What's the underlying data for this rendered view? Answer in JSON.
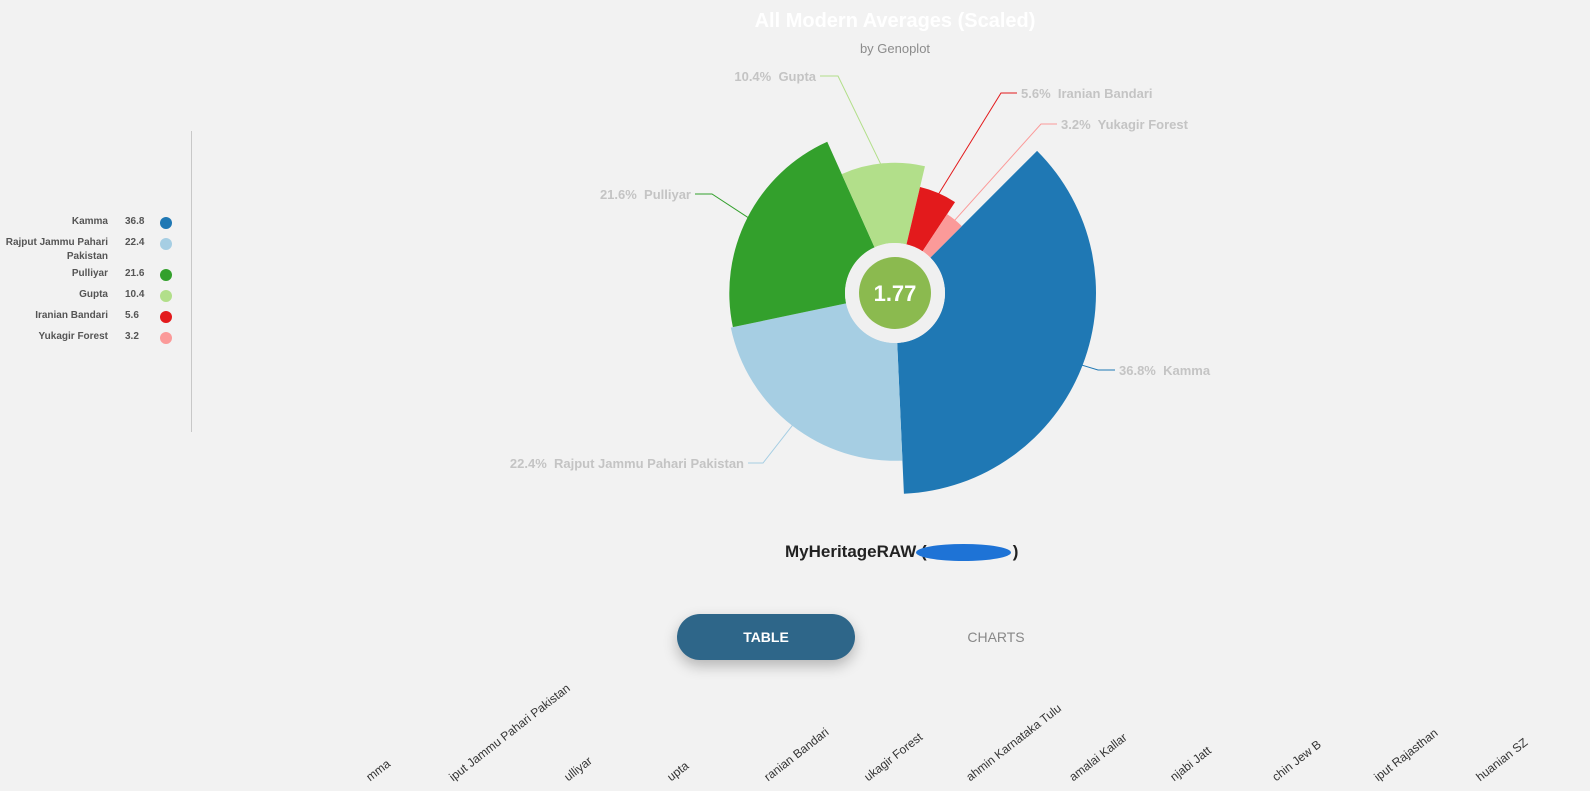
{
  "chart_data": {
    "type": "pie",
    "title": "All Modern Averages (Scaled)",
    "subtitle": "by Genoplot",
    "center_value": "1.77",
    "series": [
      {
        "name": "Kamma",
        "value": 36.8,
        "color": "#1f78b4"
      },
      {
        "name": "Rajput Jammu Pahari Pakistan",
        "value": 22.4,
        "color": "#a6cee3"
      },
      {
        "name": "Pulliyar",
        "value": 21.6,
        "color": "#33a02c"
      },
      {
        "name": "Gupta",
        "value": 10.4,
        "color": "#b2df8a"
      },
      {
        "name": "Iranian Bandari",
        "value": 5.6,
        "color": "#e31a1c"
      },
      {
        "name": "Yukagir Forest",
        "value": 3.2,
        "color": "#fb9a99"
      }
    ],
    "data_labels": [
      "36.8%  Kamma",
      "22.4%  Rajput Jammu Pahari Pakistan",
      "21.6%  Pulliyar",
      "10.4%  Gupta",
      "5.6%  Iranian Bandari",
      "3.2%  Yukagir Forest"
    ],
    "legend": {
      "placement": "left",
      "items": [
        {
          "label": "Kamma",
          "value": "36.8",
          "color": "#1f78b4"
        },
        {
          "label": "Rajput Jammu Pahari Pakistan",
          "value": "22.4",
          "color": "#a6cee3"
        },
        {
          "label": "Pulliyar",
          "value": "21.6",
          "color": "#33a02c"
        },
        {
          "label": "Gupta",
          "value": "10.4",
          "color": "#b2df8a"
        },
        {
          "label": "Iranian Bandari",
          "value": "5.6",
          "color": "#e31a1c"
        },
        {
          "label": "Yukagir Forest",
          "value": "3.2",
          "color": "#fb9a99"
        }
      ]
    }
  },
  "sample": {
    "name": "MyHeritageRAW (",
    "close": ")"
  },
  "tabs": {
    "table": "TABLE",
    "charts": "CHARTS",
    "active": "TABLE"
  },
  "table_headers": [
    "mma",
    "iput Jammu Pahari Pakistan",
    "ulliyar",
    "upta",
    "ranian Bandari",
    "ukagir Forest",
    "ahmin Karnataka Tulu",
    "amalai Kallar",
    "njabi Jatt",
    "chin Jew B",
    "iput Rajasthan",
    "huanian SZ"
  ],
  "colors": {
    "center_outer": "#f0f0f0",
    "center_inner": "#8bba4f",
    "active_tab": "#2e6689"
  }
}
